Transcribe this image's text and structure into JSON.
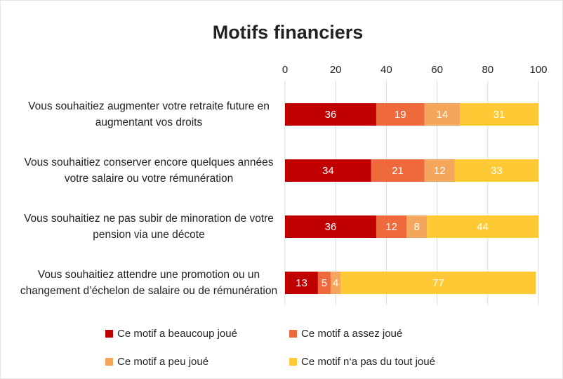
{
  "chart_data": {
    "type": "stacked_barh",
    "title": "Motifs financiers",
    "categories": [
      "Vous souhaitiez augmenter votre retraite future en augmentant vos droits",
      "Vous souhaitiez conserver encore quelques années votre salaire ou votre rémunération",
      "Vous souhaitiez ne pas subir de minoration de votre pension via une décote",
      "Vous souhaitiez attendre une promotion ou un changement d’échelon de salaire ou de rémunération"
    ],
    "series": [
      {
        "name": "Ce motif a beaucoup joué",
        "color": "#c00000",
        "values": [
          36,
          34,
          36,
          13
        ]
      },
      {
        "name": "Ce motif a assez joué",
        "color": "#ee6a3c",
        "values": [
          19,
          21,
          12,
          5
        ]
      },
      {
        "name": "Ce motif a peu joué",
        "color": "#f4a65c",
        "values": [
          14,
          12,
          8,
          4
        ]
      },
      {
        "name": "Ce motif n‘a pas du tout joué",
        "color": "#ffc936",
        "values": [
          31,
          33,
          44,
          77
        ]
      }
    ],
    "xlim": [
      0,
      100
    ],
    "xticks": [
      0,
      20,
      40,
      60,
      80,
      100
    ],
    "grid": true,
    "legend": "bottom"
  }
}
